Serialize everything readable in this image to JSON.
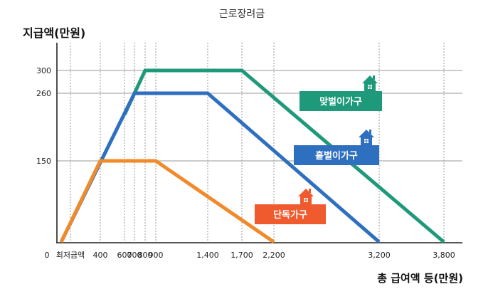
{
  "chart_data": {
    "type": "line",
    "title": "근로장려금",
    "ylabel": "지급액(만원)",
    "xlabel": "총 급여액 등(만원)",
    "x_ticks": [
      {
        "value": 0,
        "label": "0"
      },
      {
        "value": 200,
        "label": "최저금액"
      },
      {
        "value": 400,
        "label": "400"
      },
      {
        "value": 600,
        "label": "600"
      },
      {
        "value": 700,
        "label": "700"
      },
      {
        "value": 800,
        "label": "800"
      },
      {
        "value": 900,
        "label": "900"
      },
      {
        "value": 1400,
        "label": "1,400"
      },
      {
        "value": 1700,
        "label": "1,700"
      },
      {
        "value": 2200,
        "label": "2,200"
      },
      {
        "value": 3200,
        "label": "3,200"
      },
      {
        "value": 3800,
        "label": "3,800"
      }
    ],
    "y_ticks": [
      150,
      260,
      300
    ],
    "xlim": [
      0,
      4000
    ],
    "ylim": [
      0,
      330
    ],
    "series": [
      {
        "name": "맞벌이가구",
        "color": "#1e9a7a",
        "x": [
          600,
          800,
          1700,
          3800
        ],
        "y": [
          225,
          300,
          300,
          0
        ]
      },
      {
        "name": "홑벌이가구",
        "color": "#2f6fc0",
        "x": [
          0,
          700,
          1400,
          3200
        ],
        "y": [
          0,
          260,
          260,
          0
        ]
      },
      {
        "name": "단독가구",
        "color": "#f08a2a",
        "x": [
          0,
          400,
          900,
          2200
        ],
        "y": [
          0,
          150,
          150,
          0
        ]
      }
    ],
    "label_colors": {
      "맞벌이가구": "#1e9a7a",
      "홑벌이가구": "#2f6fc0",
      "단독가구": "#ef5a2f"
    },
    "axis_color": "#222222",
    "grid_color": "#9a9a9a"
  }
}
